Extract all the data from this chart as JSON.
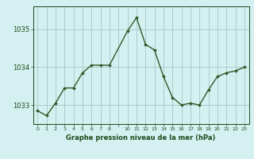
{
  "x": [
    0,
    1,
    2,
    3,
    4,
    5,
    6,
    7,
    8,
    10,
    11,
    12,
    13,
    14,
    15,
    16,
    17,
    18,
    19,
    20,
    21,
    22,
    23
  ],
  "y": [
    1032.85,
    1032.72,
    1033.05,
    1033.45,
    1033.45,
    1033.85,
    1034.05,
    1034.05,
    1034.05,
    1034.95,
    1035.3,
    1034.6,
    1034.45,
    1033.75,
    1033.2,
    1033.0,
    1033.05,
    1033.0,
    1033.4,
    1033.75,
    1033.85,
    1033.9,
    1034.0
  ],
  "line_color": "#2d5a27",
  "marker_color": "#2d5a27",
  "bg_color": "#d4f0f0",
  "plot_bg_color": "#d4f0f0",
  "grid_color": "#a0c8c8",
  "label_color": "#1a4a1a",
  "xlabel": "Graphe pression niveau de la mer (hPa)",
  "yticks": [
    1033,
    1034,
    1035
  ],
  "xlim": [
    -0.5,
    23.5
  ],
  "ylim": [
    1032.5,
    1035.6
  ],
  "xtick_labels": [
    "0",
    "1",
    "2",
    "3",
    "4",
    "5",
    "6",
    "7",
    "8",
    "",
    "10",
    "11",
    "12",
    "13",
    "14",
    "15",
    "16",
    "17",
    "18",
    "19",
    "20",
    "21",
    "22",
    "23"
  ]
}
